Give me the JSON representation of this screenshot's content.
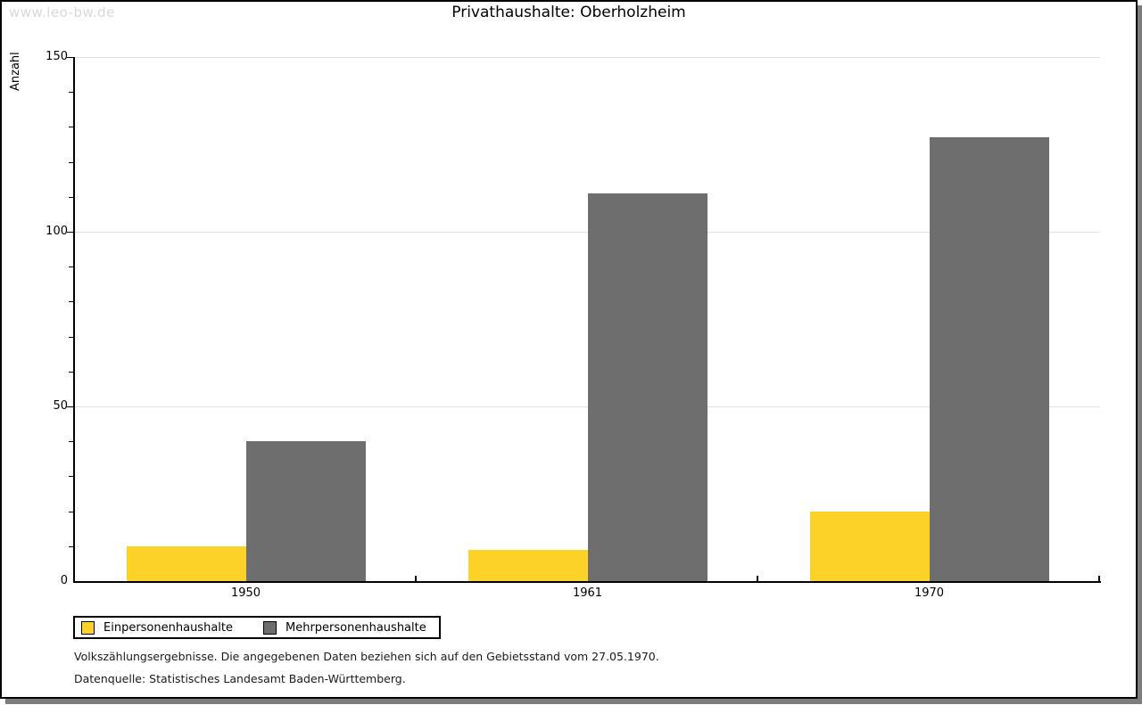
{
  "watermark": "www.leo-bw.de",
  "chart_data": {
    "type": "bar",
    "title": "Privathaushalte: Oberholzheim",
    "ylabel": "Anzahl",
    "xlabel": "",
    "categories": [
      "1950",
      "1961",
      "1970"
    ],
    "series": [
      {
        "name": "Einpersonenhaushalte",
        "color": "#fcd228",
        "values": [
          10,
          9,
          20
        ]
      },
      {
        "name": "Mehrpersonenhaushalte",
        "color": "#6e6e6e",
        "values": [
          40,
          111,
          127
        ]
      }
    ],
    "ylim": [
      0,
      150
    ],
    "yticks_major": [
      0,
      50,
      100,
      150
    ],
    "ytick_minor_step": 10,
    "grid": "horizontal-major-light-gray",
    "legend_position": "bottom-left"
  },
  "footnotes": [
    "Volkszählungsergebnisse. Die angegebenen Daten beziehen sich auf den Gebietsstand vom 27.05.1970.",
    "Datenquelle: Statistisches Landesamt Baden-Württemberg."
  ],
  "colors": {
    "grid": "#e0e0e0",
    "axis": "#000000",
    "watermark": "#d9d9d9",
    "frame_shadow": "#7d7d7d",
    "bar_yellow": "#fcd228",
    "bar_gray": "#6e6e6e"
  }
}
